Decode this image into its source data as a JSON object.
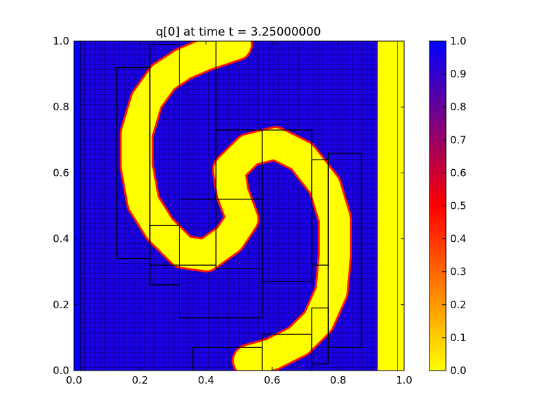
{
  "chart_data": {
    "type": "heatmap",
    "title": "q[0] at time t =     3.25000000",
    "xlabel": "",
    "ylabel": "",
    "xlim": [
      0.0,
      1.0
    ],
    "ylim": [
      0.0,
      1.0
    ],
    "x_ticks": [
      "0.0",
      "0.2",
      "0.4",
      "0.6",
      "0.8",
      "1.0"
    ],
    "y_ticks": [
      "0.0",
      "0.2",
      "0.4",
      "0.6",
      "0.8",
      "1.0"
    ],
    "grid": false,
    "field_range": [
      0.0,
      1.0
    ],
    "field_description_values": {
      "background_value": 0.95,
      "spiral_value": 0.0
    },
    "colormap": {
      "stops": [
        {
          "value": 0.0,
          "color": "#ffff00"
        },
        {
          "value": 0.5,
          "color": "#ff0000"
        },
        {
          "value": 1.0,
          "color": "#0000ff"
        }
      ]
    },
    "colorbar": {
      "ticks": [
        "0.0",
        "0.1",
        "0.2",
        "0.3",
        "0.4",
        "0.5",
        "0.6",
        "0.7",
        "0.8",
        "0.9",
        "1.0"
      ]
    },
    "amr_patches": [
      [
        0.13,
        0.34,
        0.23,
        0.92
      ],
      [
        0.23,
        0.32,
        0.32,
        0.99
      ],
      [
        0.32,
        0.32,
        0.43,
        1.0
      ],
      [
        0.43,
        0.31,
        0.57,
        0.73
      ],
      [
        0.57,
        0.27,
        0.72,
        0.73
      ],
      [
        0.72,
        0.32,
        0.77,
        0.64
      ],
      [
        0.77,
        0.07,
        0.87,
        0.66
      ],
      [
        0.32,
        0.16,
        0.57,
        0.52
      ],
      [
        0.23,
        0.26,
        0.32,
        0.44
      ],
      [
        0.36,
        0.0,
        0.57,
        0.07
      ],
      [
        0.57,
        0.0,
        0.72,
        0.11
      ],
      [
        0.72,
        0.02,
        0.77,
        0.19
      ]
    ]
  }
}
